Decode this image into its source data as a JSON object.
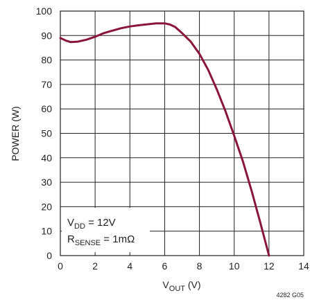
{
  "chart_data": {
    "type": "line",
    "title": "",
    "xlabel": {
      "main": "V",
      "sub": "OUT",
      "unit": " (V)"
    },
    "ylabel": "POWER (W)",
    "xlim": [
      0,
      14
    ],
    "ylim": [
      0,
      100
    ],
    "xticks": [
      "0",
      "2",
      "4",
      "6",
      "8",
      "10",
      "12",
      "14"
    ],
    "yticks": [
      "0",
      "10",
      "20",
      "30",
      "40",
      "50",
      "60",
      "70",
      "80",
      "90",
      "100"
    ],
    "grid": true,
    "series": [
      {
        "color": "#8a1538",
        "x": [
          0,
          0.3,
          0.6,
          1.0,
          1.5,
          2.0,
          2.5,
          3.0,
          3.5,
          4.0,
          4.5,
          5.0,
          5.5,
          6.0,
          6.3,
          6.6,
          7.0,
          7.5,
          8.0,
          8.5,
          9.0,
          9.5,
          10.0,
          10.5,
          11.0,
          11.5,
          12.0
        ],
        "y": [
          89,
          88,
          87.3,
          87.5,
          88.3,
          89.5,
          91,
          92,
          93,
          93.7,
          94.2,
          94.6,
          95,
          95,
          94.5,
          93.5,
          91,
          87.5,
          82.5,
          76,
          68,
          59,
          49,
          38.5,
          26.5,
          13.5,
          0
        ]
      }
    ],
    "annotation": {
      "line1": {
        "main": "V",
        "sub": "DD",
        "rest": " = 12V"
      },
      "line2": {
        "main": "R",
        "sub": "SENSE",
        "rest": " = 1mΩ"
      }
    },
    "figure_id": "4282 G05"
  }
}
